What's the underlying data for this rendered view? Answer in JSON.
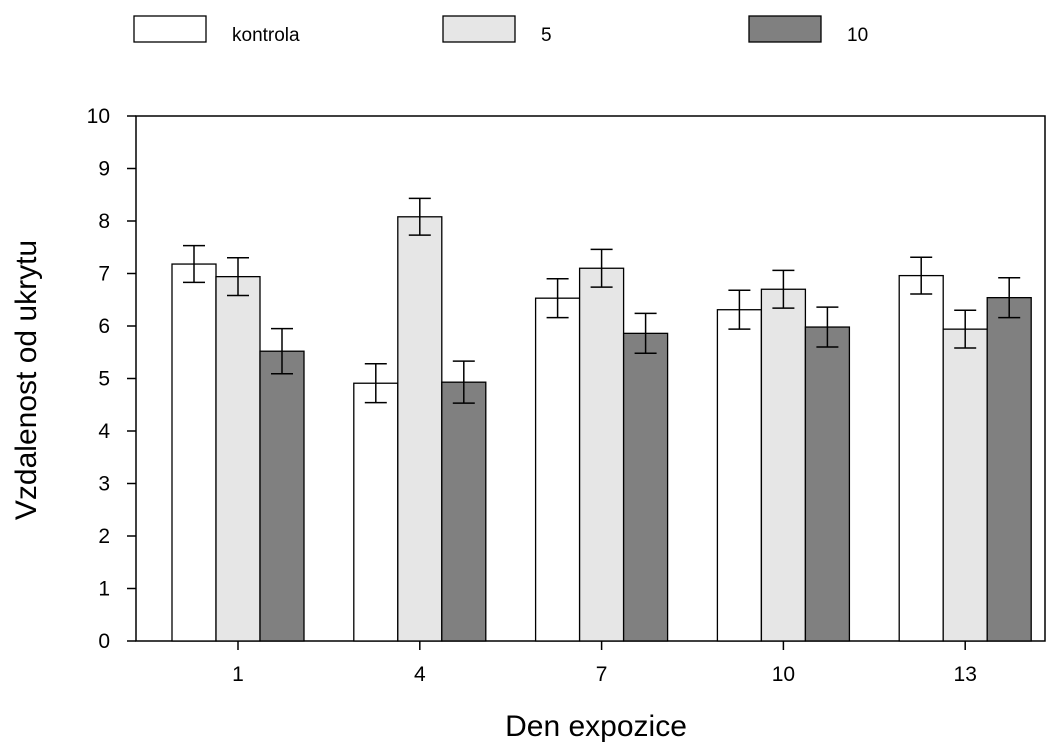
{
  "chart_data": {
    "type": "bar",
    "title": "",
    "xlabel": "Den expozice",
    "ylabel": "Vzdalenost od ukrytu",
    "categories": [
      "1",
      "4",
      "7",
      "10",
      "13"
    ],
    "ylim": [
      0,
      10
    ],
    "yticks": [
      "0",
      "1",
      "2",
      "3",
      "4",
      "5",
      "6",
      "7",
      "8",
      "9",
      "10"
    ],
    "legend_position": "top",
    "series": [
      {
        "name": "kontrola",
        "color": "#ffffff",
        "values": [
          7.18,
          4.91,
          6.53,
          6.31,
          6.96
        ],
        "errors": [
          0.35,
          0.37,
          0.37,
          0.37,
          0.35
        ]
      },
      {
        "name": "5",
        "color": "#e6e6e6",
        "values": [
          6.94,
          8.08,
          7.1,
          6.7,
          5.94
        ],
        "errors": [
          0.36,
          0.35,
          0.36,
          0.36,
          0.36
        ]
      },
      {
        "name": "10",
        "color": "#808080",
        "values": [
          5.52,
          4.93,
          5.86,
          5.98,
          6.54
        ],
        "errors": [
          0.43,
          0.4,
          0.38,
          0.38,
          0.38
        ]
      }
    ]
  }
}
